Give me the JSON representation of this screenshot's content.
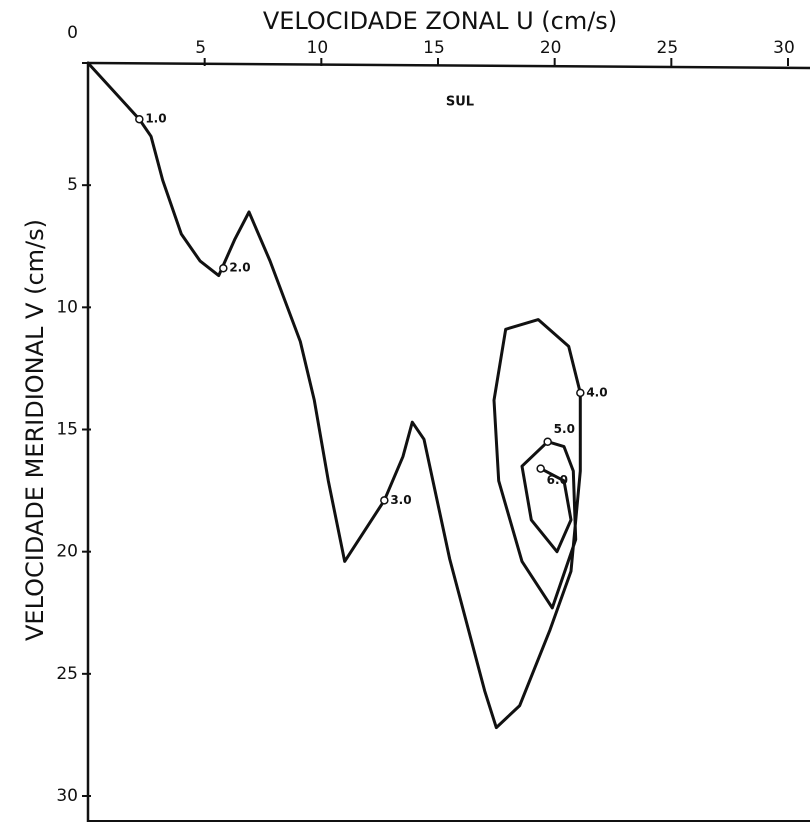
{
  "chart_data": {
    "type": "line",
    "title": "VELOCIDADE ZONAL U (cm/s)",
    "y_label": "VELOCIDADE MERIDIONAL V (cm/s)",
    "annotation": "SUL",
    "xlim": [
      0,
      30
    ],
    "ylim": [
      0,
      30
    ],
    "y_inverted": true,
    "xticks": [
      5,
      10,
      15,
      20,
      25,
      30
    ],
    "yticks": [
      0,
      5,
      10,
      15,
      20,
      25,
      30
    ],
    "color": "#111111",
    "x": [
      0,
      2.2,
      2.7,
      3.2,
      4.0,
      4.8,
      5.6,
      6.3,
      6.9,
      7.8,
      9.1,
      9.7,
      10.3,
      11.0,
      12.7,
      13.5,
      13.9,
      14.4,
      15.5,
      17.0,
      17.5,
      18.5,
      19.8,
      20.7,
      21.1,
      21.1,
      20.6,
      19.3,
      17.9,
      17.4,
      17.6,
      18.6,
      19.9,
      20.9,
      20.8,
      20.4,
      19.7,
      18.6,
      19.0,
      20.1,
      20.7,
      20.4,
      19.4
    ],
    "values": [
      0,
      2.3,
      3.0,
      4.8,
      7.0,
      8.1,
      8.7,
      7.2,
      6.1,
      8.1,
      11.4,
      13.8,
      17.1,
      20.4,
      17.9,
      16.1,
      14.7,
      15.4,
      20.3,
      25.7,
      27.2,
      26.3,
      23.2,
      20.8,
      16.7,
      13.5,
      11.6,
      10.5,
      10.9,
      13.8,
      17.1,
      20.4,
      22.3,
      19.5,
      16.7,
      15.7,
      15.5,
      16.5,
      18.7,
      20.0,
      18.7,
      17.1,
      16.6
    ],
    "points": [
      {
        "label": "1.0",
        "x": 2.2,
        "y": 2.3
      },
      {
        "label": "2.0",
        "x": 5.8,
        "y": 8.4
      },
      {
        "label": "3.0",
        "x": 12.7,
        "y": 17.9
      },
      {
        "label": "4.0",
        "x": 21.1,
        "y": 13.5
      },
      {
        "label": "5.0",
        "x": 19.7,
        "y": 15.5
      },
      {
        "label": "6.0",
        "x": 19.4,
        "y": 16.6
      }
    ]
  }
}
